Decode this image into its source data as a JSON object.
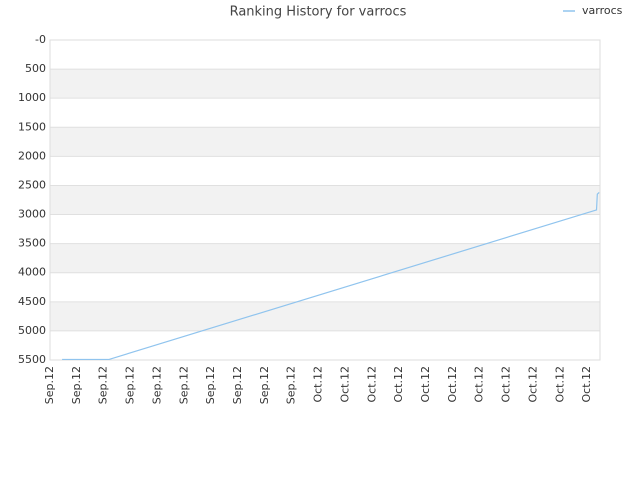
{
  "chart_data": {
    "type": "line",
    "title": "Ranking History for varrocs",
    "categories": [
      "Sep.12",
      "Sep.12",
      "Sep.12",
      "Sep.12",
      "Sep.12",
      "Sep.12",
      "Sep.12",
      "Sep.12",
      "Sep.12",
      "Sep.12",
      "Oct.12",
      "Oct.12",
      "Oct.12",
      "Oct.12",
      "Oct.12",
      "Oct.12",
      "Oct.12",
      "Oct.12",
      "Oct.12",
      "Oct.12",
      "Oct.12"
    ],
    "series": [
      {
        "name": "varrocs",
        "color": "#90c4ee",
        "x": [
          0.45,
          2.2,
          20.35,
          20.38,
          20.45
        ],
        "values": [
          5490,
          5490,
          2920,
          2650,
          2620
        ]
      }
    ],
    "xlim": [
      0,
      20.48
    ],
    "ylim": [
      0,
      5500
    ],
    "y_inverted": true,
    "yticks": [
      {
        "value": 0,
        "label": "-0"
      },
      500,
      1000,
      1500,
      2000,
      2500,
      3000,
      3500,
      4000,
      4500,
      5000,
      5500
    ],
    "grid": true,
    "legend": "top-right"
  }
}
